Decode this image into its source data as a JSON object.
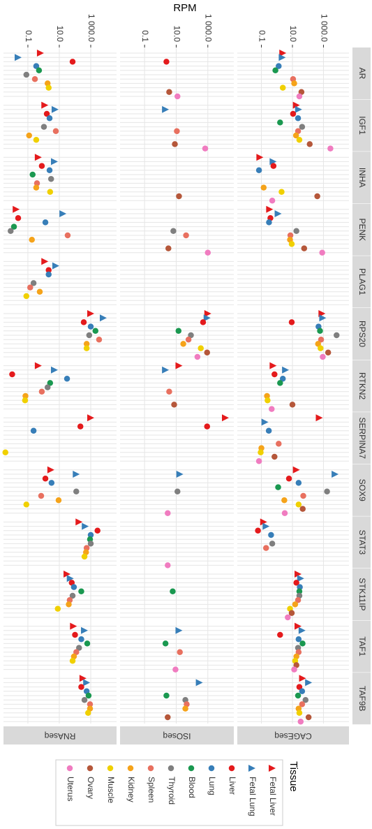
{
  "chart_data": {
    "type": "dot",
    "axis_label": "RPM",
    "log_scale": true,
    "grid": true,
    "ylim": [
      0.0028,
      44000
    ],
    "yticks": [
      {
        "value": 0.1,
        "label": "0.1"
      },
      {
        "value": 10,
        "label": "10.0"
      },
      {
        "value": 1000,
        "label": "1 000.0"
      }
    ],
    "panels": [
      "CAGEseq",
      "ISOseq",
      "RNAseq"
    ],
    "categories": [
      "AR",
      "IGF1",
      "INHA",
      "PENK",
      "PLAG1",
      "RPS20",
      "RTKN2",
      "SERPINA7",
      "SOX9",
      "STAT3",
      "STK11IP",
      "TAF1",
      "TAF9B"
    ],
    "legend_title": "Tissue",
    "series": [
      {
        "name": "Fetal Liver",
        "color": "#e41a1c",
        "shape": "triangle",
        "values": [
          [
            2.4,
            18,
            0.08,
            0.34,
            null,
            800,
            0.57,
            540,
            18,
            0.14,
            23,
            23,
            45
          ],
          [
            null,
            null,
            null,
            null,
            null,
            1000,
            15,
            13000,
            null,
            null,
            null,
            null,
            null
          ],
          [
            0.63,
            1.2,
            0.46,
            0.018,
            1.2,
            1000,
            0.46,
            1000,
            2.9,
            180,
            31,
            80,
            320
          ]
        ]
      },
      {
        "name": "Fetal Lung",
        "color": "#377eb8",
        "shape": "triangle",
        "values": [
          [
            2.2,
            25,
            0.57,
            1.2,
            null,
            900,
            3.6,
            0.17,
            5600,
            0.2,
            34,
            42,
            110
          ],
          [
            null,
            2.1,
            null,
            null,
            null,
            900,
            2.1,
            null,
            17,
            null,
            null,
            15,
            290
          ],
          [
            0.024,
            5.4,
            4.9,
            17,
            6,
            6300,
            4.9,
            null,
            120,
            450,
            50,
            400,
            550
          ]
        ]
      },
      {
        "name": "Liver",
        "color": "#e41a1c",
        "shape": "circle",
        "values": [
          [
            null,
            11,
            0.6,
            0.38,
            null,
            9,
            0.7,
            null,
            6,
            0.06,
            18,
            1.6,
            28
          ],
          [
            2.4,
            null,
            null,
            null,
            null,
            500,
            null,
            900,
            null,
            null,
            null,
            null,
            null
          ],
          [
            70,
            1.6,
            0.77,
            0.024,
            2.1,
            360,
            0.01,
            220,
            1.3,
            2700,
            62,
            100,
            250
          ]
        ]
      },
      {
        "name": "Lung",
        "color": "#377eb8",
        "shape": "circle",
        "values": [
          [
            1.3,
            23,
            0.07,
            0.31,
            null,
            480,
            2.4,
            0.3,
            25,
            0.42,
            30,
            25,
            42
          ],
          [
            null,
            null,
            null,
            null,
            null,
            null,
            null,
            null,
            null,
            null,
            null,
            null,
            null
          ],
          [
            0.34,
            2.4,
            2.4,
            1.3,
            2.1,
            1000,
            31,
            0.23,
            3.2,
            1000,
            85,
            250,
            550
          ]
        ]
      },
      {
        "name": "Blood",
        "color": "#1a9850",
        "shape": "circle",
        "values": [
          [
            0.8,
            1.6,
            null,
            null,
            null,
            600,
            1.6,
            null,
            1.2,
            null,
            28,
            45,
            23
          ],
          [
            null,
            null,
            null,
            null,
            null,
            14,
            null,
            null,
            null,
            null,
            6,
            2.1,
            2.4
          ],
          [
            0.51,
            null,
            0.2,
            0.013,
            null,
            2000,
            2.6,
            null,
            null,
            900,
            250,
            600,
            730
          ]
        ]
      },
      {
        "name": "Thyroid",
        "color": "#7f7f7f",
        "shape": "circle",
        "values": [
          [
            null,
            42,
            null,
            18,
            null,
            7000,
            null,
            null,
            1700,
            0.5,
            28,
            23,
            70
          ],
          [
            null,
            null,
            null,
            6.6,
            null,
            85,
            null,
            null,
            12,
            null,
            null,
            null,
            38
          ],
          [
            0.08,
            1.05,
            3,
            0.008,
            0.23,
            800,
            1.8,
            null,
            120,
            1000,
            70,
            180,
            400
          ]
        ]
      },
      {
        "name": "Spleen",
        "color": "#e8705f",
        "shape": "circle",
        "values": [
          [
            11,
            23,
            null,
            7.4,
            null,
            700,
            null,
            1.3,
            50,
            0.2,
            23,
            25,
            42
          ],
          [
            null,
            11,
            null,
            42,
            null,
            60,
            3.6,
            null,
            null,
            null,
            null,
            17,
            46
          ],
          [
            0.28,
            6,
            0.38,
            34,
            0.14,
            3400,
            0.77,
            null,
            0.7,
            550,
            46,
            120,
            900
          ]
        ]
      },
      {
        "name": "Kidney",
        "color": "#f5a31a",
        "shape": "circle",
        "values": [
          [
            13,
            17,
            0.14,
            7,
            null,
            450,
            0.23,
            0.1,
            3,
            null,
            15,
            18,
            25
          ],
          [
            null,
            null,
            null,
            null,
            null,
            28,
            null,
            null,
            null,
            null,
            null,
            null,
            38
          ],
          [
            1.8,
            0.12,
            0.34,
            0.18,
            0.57,
            550,
            0.07,
            null,
            9,
            500,
            40,
            85,
            900
          ]
        ]
      },
      {
        "name": "Muscle",
        "color": "#f0d000",
        "shape": "circle",
        "values": [
          [
            2.4,
            28,
            2,
            9,
            null,
            650,
            0.25,
            0.09,
            25,
            null,
            7,
            15,
            28
          ],
          [
            null,
            null,
            null,
            null,
            null,
            360,
            null,
            null,
            null,
            null,
            null,
            null,
            null
          ],
          [
            2.1,
            0.34,
            2.6,
            null,
            0.08,
            550,
            0.066,
            0.0037,
            0.08,
            400,
            8,
            70,
            680
          ]
        ]
      },
      {
        "name": "Ovary",
        "color": "#b5573a",
        "shape": "circle",
        "values": [
          [
            38,
            130,
            400,
            57,
            null,
            2000,
            10,
            0.7,
            46,
            null,
            9,
            18,
            110
          ],
          [
            3.6,
            8.2,
            15,
            3.2,
            null,
            900,
            7.4,
            null,
            null,
            null,
            null,
            null,
            2.9
          ],
          [
            null,
            null,
            null,
            null,
            null,
            null,
            null,
            null,
            null,
            null,
            null,
            null,
            null
          ]
        ]
      },
      {
        "name": "Uterus",
        "color": "#f07cc0",
        "shape": "circle",
        "values": [
          [
            28,
            2800,
            0.5,
            830,
            null,
            900,
            0.46,
            0.07,
            3.2,
            null,
            5,
            13,
            34
          ],
          [
            12,
            680,
            null,
            1000,
            null,
            220,
            null,
            null,
            2.9,
            2.9,
            null,
            9,
            null
          ],
          [
            null,
            null,
            null,
            null,
            null,
            null,
            null,
            null,
            null,
            null,
            null,
            null,
            null
          ]
        ]
      }
    ]
  }
}
